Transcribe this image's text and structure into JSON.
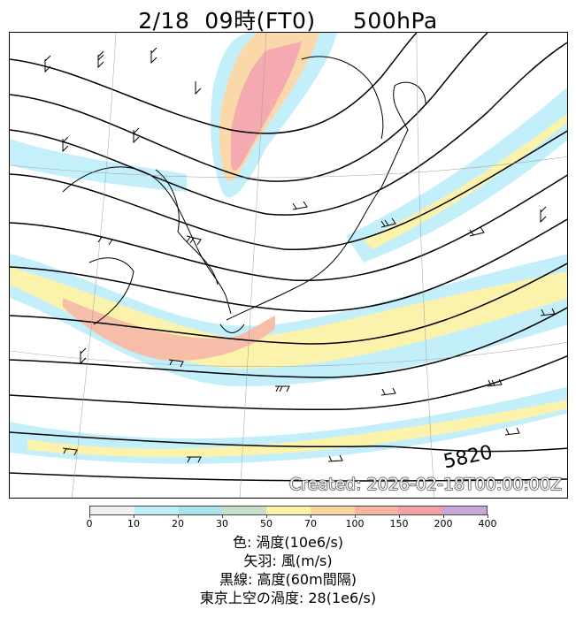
{
  "title": "2/18  09時(FT0)     500hPa",
  "map": {
    "created_label": "Created: 2026-02-18T00:00:00Z",
    "contour_label": "5820",
    "land_color": "#ffffff",
    "contour_color": "#000000"
  },
  "colorbar": {
    "ticks": [
      "0",
      "10",
      "20",
      "30",
      "50",
      "70",
      "100",
      "150",
      "200",
      "400"
    ],
    "colors": [
      "#f0f0f0",
      "#bdeefa",
      "#a9e3ee",
      "#c8e0c8",
      "#fbf2a4",
      "#fbd4a0",
      "#f6b6a0",
      "#f5a0a8",
      "#c9a6d9"
    ]
  },
  "captions": [
    "色: 渦度(10e6/s)",
    "矢羽: 風(m/s)",
    "黒線: 高度(60m間隔)",
    "東京上空の渦度: 28(1e6/s)"
  ]
}
